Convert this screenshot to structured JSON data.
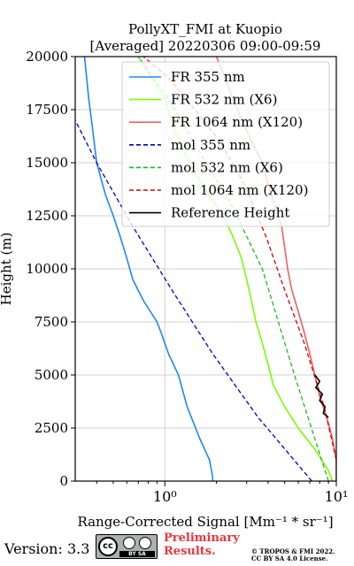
{
  "chart_data": {
    "type": "line",
    "title": "PollyXT_FMI at Kuopio",
    "subtitle": "[Averaged] 20220306 09:00-09:59",
    "xlabel": "Range-Corrected Signal [Mm⁻¹ * sr⁻¹]",
    "ylabel": "Height (m)",
    "xscale": "log",
    "xlim": [
      0.3,
      10
    ],
    "ylim": [
      0,
      20000
    ],
    "x_ticks": [
      1,
      10
    ],
    "x_tick_labels": [
      "10⁰",
      "10¹"
    ],
    "y_ticks": [
      0,
      2500,
      5000,
      7500,
      10000,
      12500,
      15000,
      17500,
      20000
    ],
    "y_tick_labels": [
      "0",
      "2500",
      "5000",
      "7500",
      "10000",
      "12500",
      "15000",
      "17500",
      "20000"
    ],
    "grid": true,
    "legend_position": "top-right",
    "series": [
      {
        "name": "FR 355 nm",
        "color": "#1e88f0",
        "style": "solid",
        "x": [
          1.9,
          1.9,
          1.82,
          1.6,
          1.35,
          1.2,
          1.05,
          0.95,
          0.9,
          0.75,
          0.65,
          0.6,
          0.55,
          0.5,
          0.45,
          0.4,
          0.38,
          0.36,
          0.34
        ],
        "y": [
          0,
          200,
          1000,
          2000,
          3500,
          5000,
          6000,
          7000,
          7500,
          8500,
          9500,
          10500,
          11500,
          12500,
          13500,
          15000,
          16500,
          18000,
          20000
        ]
      },
      {
        "name": "FR 532 nm (X6)",
        "color": "#7cfc00",
        "style": "solid",
        "x": [
          9.5,
          9.0,
          7.5,
          6.0,
          5.0,
          4.3,
          4.0,
          3.7,
          3.4,
          3.2,
          3.0,
          2.8,
          2.5,
          2.2,
          1.8,
          1.5,
          1.2,
          1.0,
          0.7
        ],
        "y": [
          0,
          500,
          1500,
          2500,
          3500,
          4500,
          5500,
          6500,
          7500,
          8500,
          9500,
          10500,
          11500,
          12500,
          13500,
          14500,
          16000,
          18000,
          20000
        ]
      },
      {
        "name": "FR 1064 nm (X120)",
        "color": "#f06060",
        "style": "solid",
        "x": [
          10,
          10,
          9.5,
          8.8,
          8.0,
          7.5,
          7.0,
          6.5,
          6.0,
          5.5,
          5.2,
          5.0,
          4.8,
          4.4,
          4.0,
          3.7,
          3.0,
          2.5,
          2.0
        ],
        "y": [
          0,
          1000,
          2000,
          3000,
          4000,
          5000,
          6000,
          7000,
          8000,
          9000,
          10000,
          11000,
          12000,
          13000,
          14000,
          15000,
          16500,
          18000,
          20000
        ]
      },
      {
        "name": "mol 355 nm",
        "color": "#0000c8",
        "style": "dashed",
        "x": [
          7.2,
          3.5,
          1.9,
          1.1,
          0.65,
          0.4,
          0.3
        ],
        "y": [
          0,
          3000,
          6000,
          9000,
          12000,
          15000,
          17000
        ]
      },
      {
        "name": "mol 532 nm (X6)",
        "color": "#1fb81f",
        "style": "dashed",
        "x": [
          9.0,
          5.7,
          3.7,
          2.45,
          1.6,
          1.05,
          0.7
        ],
        "y": [
          0,
          5000,
          10000,
          13000,
          15500,
          18000,
          20000
        ]
      },
      {
        "name": "mol 1064 nm (X120)",
        "color": "#dd0000",
        "style": "dashed",
        "x": [
          10,
          8.5,
          6.5,
          5.0,
          3.9,
          2.9,
          2.1,
          1.5,
          1.05,
          0.75
        ],
        "y": [
          1000,
          3500,
          6500,
          9000,
          11500,
          14000,
          16000,
          17500,
          19000,
          20000
        ]
      },
      {
        "name": "Reference Height",
        "color": "#000000",
        "style": "solid",
        "x": [
          7.5,
          8.0,
          7.6,
          8.3,
          8.0,
          8.6,
          8.4,
          9.0
        ],
        "y": [
          5000,
          4700,
          4400,
          4100,
          3800,
          3500,
          3200,
          3000
        ]
      }
    ]
  },
  "footer": {
    "version": "Version: 3.3",
    "license_badge_text": "BY SA",
    "preliminary": [
      "Preliminary",
      "Results."
    ],
    "copyright": [
      "© TROPOS & FMI 2022.",
      "CC BY SA 4.0 License."
    ]
  }
}
